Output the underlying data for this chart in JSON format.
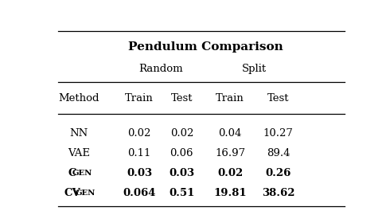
{
  "title": "Pendulum Comparison",
  "col_group_labels": [
    "Random",
    "Split"
  ],
  "col_headers": [
    "Method",
    "Train",
    "Test",
    "Train",
    "Test"
  ],
  "rows": [
    [
      "NN",
      "0.02",
      "0.02",
      "0.04",
      "10.27"
    ],
    [
      "VAE",
      "0.11",
      "0.06",
      "16.97",
      "89.4"
    ],
    [
      "CGen",
      "0.03",
      "0.03",
      "0.02",
      "0.26"
    ],
    [
      "CVGen",
      "0.064",
      "0.51",
      "19.81",
      "38.62"
    ]
  ],
  "bold_rows": [
    2,
    3
  ],
  "background_color": "#ffffff",
  "text_color": "#000000"
}
